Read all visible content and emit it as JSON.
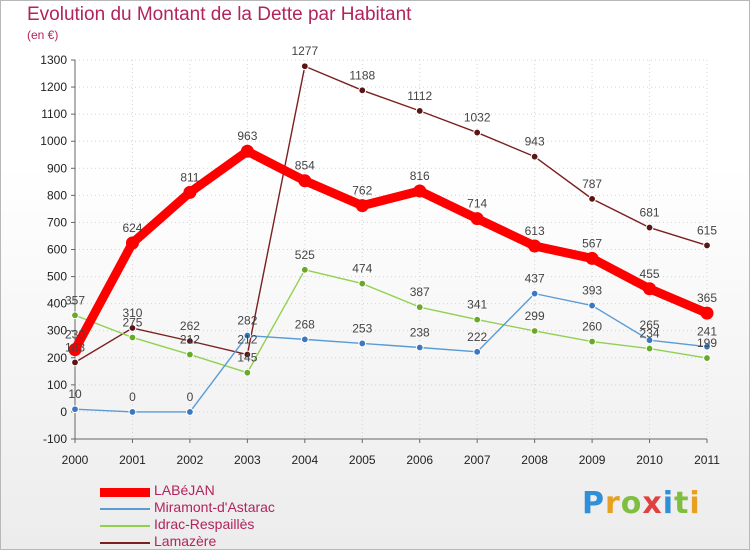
{
  "header": {
    "title": "Evolution du Montant de la Dette par Habitant",
    "unit": "(en €)"
  },
  "logo": {
    "letters": [
      {
        "char": "P",
        "color": "#2f8fd8"
      },
      {
        "char": "r",
        "color": "#e8a020"
      },
      {
        "char": "o",
        "color": "#7fbf3f"
      },
      {
        "char": "x",
        "color": "#e04040"
      },
      {
        "char": "i",
        "color": "#2f8fd8"
      },
      {
        "char": "t",
        "color": "#7fbf3f"
      },
      {
        "char": "i",
        "color": "#e8a020"
      }
    ]
  },
  "chart_data": {
    "type": "line",
    "title": "Evolution du Montant de la Dette par Habitant",
    "subtitle": "(en €)",
    "xlabel": "",
    "ylabel": "",
    "x": [
      "2000",
      "2001",
      "2002",
      "2003",
      "2004",
      "2005",
      "2006",
      "2007",
      "2008",
      "2009",
      "2010",
      "2011"
    ],
    "ylim": [
      -100,
      1300
    ],
    "yticks": [
      -100,
      0,
      100,
      200,
      300,
      400,
      500,
      600,
      700,
      800,
      900,
      1000,
      1100,
      1200,
      1300
    ],
    "grid": true,
    "legend_position": "bottom-left",
    "series": [
      {
        "name": "LABéJAN",
        "color": "#ff0000",
        "values": [
          230,
          624,
          811,
          963,
          854,
          762,
          816,
          714,
          613,
          567,
          455,
          365
        ],
        "labels": [
          "230",
          "624",
          "811",
          "963",
          "854",
          "762",
          "816",
          "714",
          "613",
          "567",
          "455",
          "365"
        ]
      },
      {
        "name": "Miramont-d'Astarac",
        "color": "#5b9bd5",
        "values": [
          10,
          0,
          0,
          282,
          268,
          253,
          238,
          222,
          437,
          393,
          265,
          241
        ],
        "labels": [
          "10",
          "0",
          "0",
          "282",
          "268",
          "253",
          "238",
          "222",
          "437",
          "393",
          "265",
          "241"
        ]
      },
      {
        "name": "Idrac-Respaillès",
        "color": "#92d050",
        "values": [
          357,
          275,
          212,
          145,
          525,
          474,
          387,
          341,
          299,
          260,
          234,
          199
        ],
        "labels": [
          "357",
          "275",
          "212",
          "145",
          "525",
          "474",
          "387",
          "341",
          "299",
          "260",
          "234",
          "199"
        ]
      },
      {
        "name": "Lamazère",
        "color": "#7b2020",
        "values": [
          183,
          310,
          262,
          212,
          1277,
          1188,
          1112,
          1032,
          943,
          787,
          681,
          615
        ],
        "labels": [
          "183",
          "310",
          "262",
          "212",
          "1277",
          "1188",
          "1112",
          "1032",
          "943",
          "787",
          "681",
          "615"
        ]
      }
    ]
  }
}
